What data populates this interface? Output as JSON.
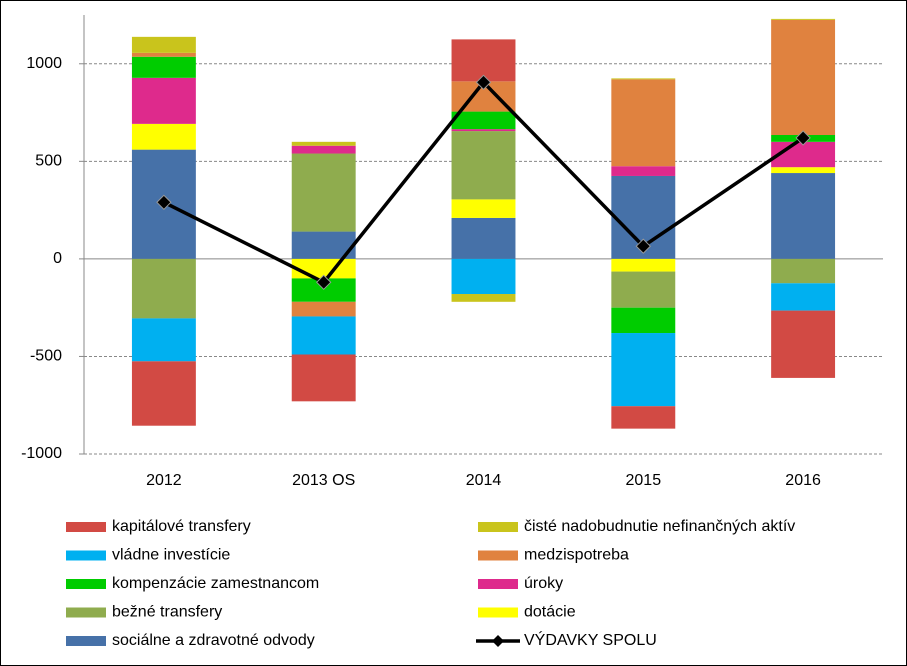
{
  "chart_data": {
    "type": "stacked_bar_line",
    "categories": [
      "2012",
      "2013 OS",
      "2014",
      "2015",
      "2016"
    ],
    "series": [
      {
        "name": "kapitálové transfery",
        "color": "#d24a44",
        "values": [
          -330,
          -240,
          215,
          -115,
          -345
        ]
      },
      {
        "name": "čisté nadobudnutie nefinančných aktív",
        "color": "#c9c41c",
        "values": [
          82,
          20,
          -40,
          5,
          5
        ]
      },
      {
        "name": "vládne investície",
        "color": "#00b0f0",
        "values": [
          -220,
          -195,
          -180,
          -375,
          -140
        ]
      },
      {
        "name": "medzispotreba",
        "color": "#e0823f",
        "values": [
          20,
          -75,
          155,
          445,
          590
        ]
      },
      {
        "name": "kompenzácie zamestnancom",
        "color": "#00cc00",
        "values": [
          108,
          -120,
          90,
          -130,
          35
        ]
      },
      {
        "name": "úroky",
        "color": "#de2a8c",
        "values": [
          236,
          40,
          10,
          50,
          130
        ]
      },
      {
        "name": "bežné transfery",
        "color": "#8fac4e",
        "values": [
          -305,
          400,
          350,
          -185,
          -125
        ]
      },
      {
        "name": "dotácie",
        "color": "#ffff00",
        "values": [
          132,
          -100,
          95,
          -65,
          30
        ]
      },
      {
        "name": "sociálne a zdravotné odvody",
        "color": "#4671a8",
        "values": [
          560,
          140,
          210,
          425,
          440
        ]
      }
    ],
    "line": {
      "name": "VÝDAVKY SPOLU",
      "color": "#000000",
      "values": [
        290,
        -120,
        905,
        65,
        620
      ]
    },
    "ylim": [
      -1000,
      1250
    ],
    "yticks": [
      -1000,
      -500,
      0,
      500,
      1000
    ],
    "grid": true
  }
}
